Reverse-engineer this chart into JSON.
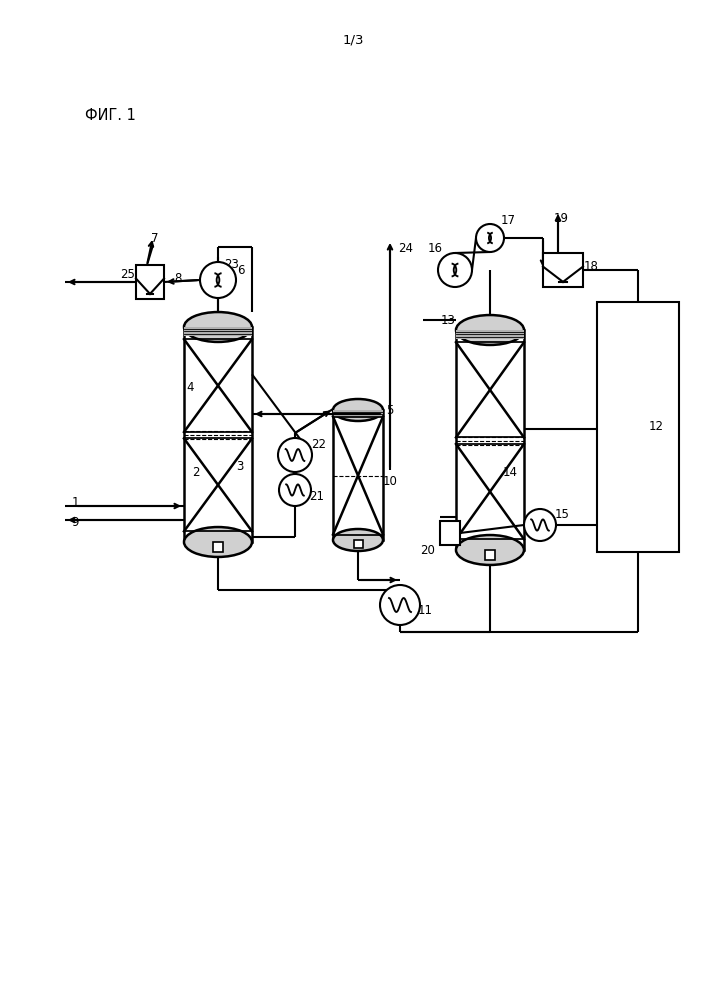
{
  "title_page": "1/3",
  "fig_label": "ФИГ. 1",
  "background_color": "#ffffff",
  "line_color": "#000000",
  "figsize": [
    7.07,
    10.0
  ],
  "dpi": 100
}
